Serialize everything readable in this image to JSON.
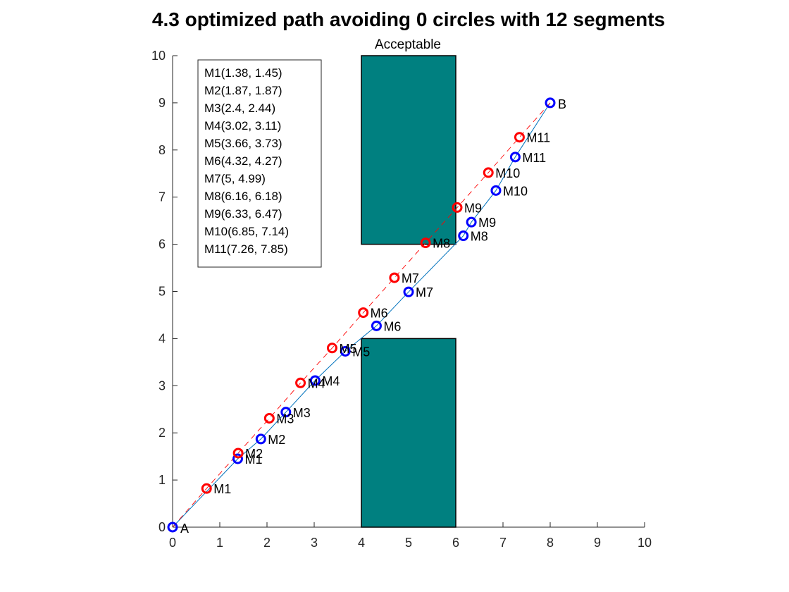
{
  "chart_data": {
    "type": "scatter",
    "title": "4.3 optimized path avoiding 0 circles with 12 segments",
    "xlabel": "",
    "ylabel": "",
    "xlim": [
      0,
      10
    ],
    "ylim": [
      0,
      10
    ],
    "xticks": [
      0,
      1,
      2,
      3,
      4,
      5,
      6,
      7,
      8,
      9,
      10
    ],
    "yticks": [
      0,
      1,
      2,
      3,
      4,
      5,
      6,
      7,
      8,
      9,
      10
    ],
    "grid": false,
    "colors": {
      "title": "#0000ff",
      "obstacle_fill": "#008080",
      "obstacle_edge": "#000000",
      "optimized_marker": "#0000ff",
      "optimized_line": "#0072bd",
      "initial_marker": "#ff0000",
      "initial_line": "#ff0000",
      "acceptable_label": "#0000ff"
    },
    "obstacles": [
      {
        "x0": 4,
        "x1": 6,
        "y0": 6,
        "y1": 10
      },
      {
        "x0": 4,
        "x1": 6,
        "y0": 0,
        "y1": 4
      }
    ],
    "top_label": "Acceptable",
    "endpoints": [
      {
        "label": "A",
        "x": 0,
        "y": 0
      },
      {
        "label": "B",
        "x": 8,
        "y": 9
      }
    ],
    "series": [
      {
        "line_style": "solid",
        "points": [
          {
            "label": "M1",
            "x": 1.38,
            "y": 1.45
          },
          {
            "label": "M2",
            "x": 1.87,
            "y": 1.87
          },
          {
            "label": "M3",
            "x": 2.4,
            "y": 2.44
          },
          {
            "label": "M4",
            "x": 3.02,
            "y": 3.11
          },
          {
            "label": "M5",
            "x": 3.66,
            "y": 3.73
          },
          {
            "label": "M6",
            "x": 4.32,
            "y": 4.27
          },
          {
            "label": "M7",
            "x": 5,
            "y": 4.99
          },
          {
            "label": "M8",
            "x": 6.16,
            "y": 6.18
          },
          {
            "label": "M9",
            "x": 6.33,
            "y": 6.47
          },
          {
            "label": "M10",
            "x": 6.85,
            "y": 7.14
          },
          {
            "label": "M11",
            "x": 7.26,
            "y": 7.85
          }
        ]
      },
      {
        "line_style": "dashed",
        "points": [
          {
            "label": "M1",
            "x": 0.72,
            "y": 0.82
          },
          {
            "label": "M2",
            "x": 1.39,
            "y": 1.57
          },
          {
            "label": "M3",
            "x": 2.05,
            "y": 2.31
          },
          {
            "label": "M4",
            "x": 2.71,
            "y": 3.06
          },
          {
            "label": "M5",
            "x": 3.38,
            "y": 3.8
          },
          {
            "label": "M6",
            "x": 4.04,
            "y": 4.55
          },
          {
            "label": "M7",
            "x": 4.7,
            "y": 5.29
          },
          {
            "label": "M8",
            "x": 5.36,
            "y": 6.03
          },
          {
            "label": "M9",
            "x": 6.03,
            "y": 6.78
          },
          {
            "label": "M10",
            "x": 6.69,
            "y": 7.52
          },
          {
            "label": "M11",
            "x": 7.35,
            "y": 8.27
          }
        ]
      }
    ],
    "legend_box": {
      "placement": "top-left",
      "lines": [
        "M1(1.38, 1.45)",
        "M2(1.87, 1.87)",
        "M3(2.4, 2.44)",
        "M4(3.02, 3.11)",
        "M5(3.66, 3.73)",
        "M6(4.32, 4.27)",
        "M7(5, 4.99)",
        "M8(6.16, 6.18)",
        "M9(6.33, 6.47)",
        "M10(6.85, 7.14)",
        "M11(7.26, 7.85)"
      ]
    }
  }
}
